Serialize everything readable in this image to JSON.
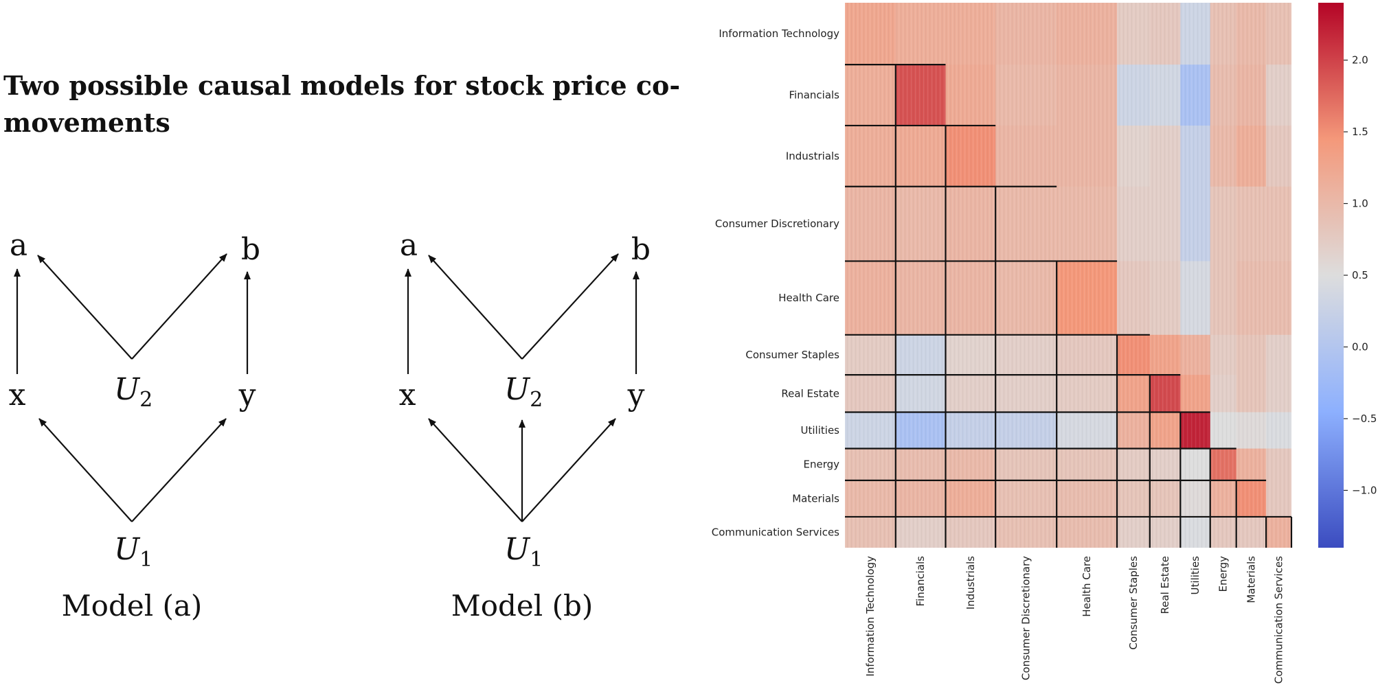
{
  "title": "Two possible causal models for stock price co-movements",
  "model_a": {
    "caption": "Model (a)",
    "nodes": {
      "a": "a",
      "b": "b",
      "x": "x",
      "y": "y",
      "U2": "U",
      "U2_sub": "2",
      "U1": "U",
      "U1_sub": "1"
    },
    "edges": [
      [
        "x",
        "a"
      ],
      [
        "U2",
        "a"
      ],
      [
        "U2",
        "b"
      ],
      [
        "y",
        "b"
      ],
      [
        "U1",
        "x"
      ],
      [
        "U1",
        "y"
      ]
    ]
  },
  "model_b": {
    "caption": "Model (b)",
    "nodes": {
      "a": "a",
      "b": "b",
      "x": "x",
      "y": "y",
      "U2": "U",
      "U2_sub": "2",
      "U1": "U",
      "U1_sub": "1"
    },
    "edges": [
      [
        "x",
        "a"
      ],
      [
        "U2",
        "a"
      ],
      [
        "U2",
        "b"
      ],
      [
        "y",
        "b"
      ],
      [
        "U1",
        "x"
      ],
      [
        "U1",
        "U2"
      ],
      [
        "U1",
        "y"
      ]
    ]
  },
  "chart_data": {
    "type": "heatmap",
    "sectors": [
      "Information Technology",
      "Financials",
      "Industrials",
      "Consumer Discretionary",
      "Health Care",
      "Consumer Staples",
      "Real Estate",
      "Utilities",
      "Energy",
      "Materials",
      "Communication Services"
    ],
    "sector_size_weights": [
      68,
      67,
      67,
      82,
      81,
      44,
      41,
      40,
      35,
      40,
      34
    ],
    "colorbar": {
      "min": -1.4,
      "max": 2.4,
      "ticks": [
        -1.0,
        -0.5,
        0.0,
        0.5,
        1.0,
        1.5,
        2.0
      ],
      "tick_labels": [
        "−1.0",
        "−0.5",
        "0.0",
        "0.5",
        "1.0",
        "1.5",
        "2.0"
      ],
      "colormap": "coolwarm"
    },
    "block_mean_values": [
      [
        1.25,
        1.15,
        1.15,
        1.05,
        1.1,
        0.75,
        0.8,
        0.3,
        0.9,
        1.0,
        0.9
      ],
      [
        1.15,
        1.9,
        1.2,
        1.0,
        1.05,
        0.3,
        0.35,
        -0.1,
        0.95,
        1.05,
        0.7
      ],
      [
        1.15,
        1.2,
        1.5,
        1.05,
        1.05,
        0.65,
        0.7,
        0.2,
        1.0,
        1.15,
        0.8
      ],
      [
        1.05,
        1.0,
        1.05,
        1.0,
        1.0,
        0.7,
        0.7,
        0.2,
        0.85,
        0.9,
        0.9
      ],
      [
        1.1,
        1.05,
        1.05,
        1.0,
        1.45,
        0.8,
        0.75,
        0.4,
        0.85,
        0.95,
        0.95
      ],
      [
        0.75,
        0.3,
        0.65,
        0.7,
        0.8,
        1.5,
        1.3,
        1.1,
        0.75,
        0.85,
        0.7
      ],
      [
        0.8,
        0.35,
        0.7,
        0.7,
        0.75,
        1.3,
        1.95,
        1.3,
        0.7,
        0.85,
        0.7
      ],
      [
        0.3,
        -0.1,
        0.2,
        0.2,
        0.4,
        1.1,
        1.3,
        2.2,
        0.5,
        0.55,
        0.45
      ],
      [
        0.9,
        0.95,
        1.0,
        0.85,
        0.85,
        0.75,
        0.7,
        0.5,
        1.7,
        1.1,
        0.8
      ],
      [
        1.0,
        1.05,
        1.15,
        0.9,
        0.95,
        0.85,
        0.85,
        0.55,
        1.1,
        1.5,
        0.8
      ],
      [
        0.9,
        0.7,
        0.8,
        0.9,
        0.95,
        0.7,
        0.7,
        0.45,
        0.8,
        0.8,
        1.1
      ]
    ],
    "block_outline": "lower-triangular"
  }
}
